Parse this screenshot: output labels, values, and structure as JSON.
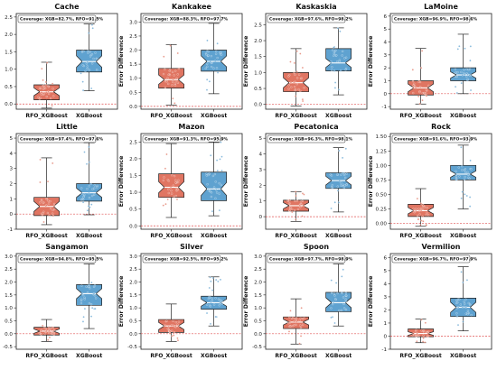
{
  "colors": {
    "rfo": "#e07562",
    "xgb": "#5fa2d0",
    "reference_line": "#e05050"
  },
  "chart_data": [
    {
      "type": "box",
      "title": "Cache",
      "coverage": "Coverage: XGB=82.7%, RFO=91.5%",
      "ylabel": "Error Difference",
      "categories": [
        "RFO_XGBoost",
        "XGBoost"
      ],
      "ylim": [
        -0.15,
        2.6
      ],
      "yticks": [
        0.0,
        0.5,
        1.0,
        1.5,
        2.0,
        2.5
      ],
      "boxes": [
        {
          "name": "RFO_XGBoost",
          "whisker_low": -0.12,
          "q1": 0.12,
          "median": 0.35,
          "q3": 0.55,
          "whisker_high": 1.2
        },
        {
          "name": "XGBoost",
          "whisker_low": 0.38,
          "q1": 0.92,
          "median": 1.22,
          "q3": 1.55,
          "whisker_high": 2.3
        }
      ]
    },
    {
      "type": "box",
      "title": "Kankakee",
      "coverage": "Coverage: XGB=88.3%, RFO=97.7%",
      "ylabel": "Error Difference",
      "categories": [
        "RFO_XGBoost",
        "XGBoost"
      ],
      "ylim": [
        -0.1,
        3.3
      ],
      "yticks": [
        0.0,
        0.5,
        1.0,
        1.5,
        2.0,
        2.5,
        3.0
      ],
      "boxes": [
        {
          "name": "RFO_XGBoost",
          "whisker_low": 0.05,
          "q1": 0.65,
          "median": 0.95,
          "q3": 1.35,
          "whisker_high": 2.2
        },
        {
          "name": "XGBoost",
          "whisker_low": 0.45,
          "q1": 1.25,
          "median": 1.6,
          "q3": 2.0,
          "whisker_high": 2.95
        }
      ]
    },
    {
      "type": "box",
      "title": "Kaskaskia",
      "coverage": "Coverage: XGB=97.6%, RFO=98.2%",
      "ylabel": "Error Difference",
      "categories": [
        "RFO_XGBoost",
        "XGBoost"
      ],
      "ylim": [
        -0.15,
        2.85
      ],
      "yticks": [
        0.0,
        0.5,
        1.0,
        1.5,
        2.0,
        2.5
      ],
      "boxes": [
        {
          "name": "RFO_XGBoost",
          "whisker_low": -0.05,
          "q1": 0.4,
          "median": 0.68,
          "q3": 1.0,
          "whisker_high": 1.75
        },
        {
          "name": "XGBoost",
          "whisker_low": 0.3,
          "q1": 1.05,
          "median": 1.3,
          "q3": 1.75,
          "whisker_high": 2.4
        }
      ]
    },
    {
      "type": "box",
      "title": "LaMoine",
      "coverage": "Coverage: XGB=96.9%, RFO=98.6%",
      "ylabel": "Error Difference",
      "categories": [
        "RFO_XGBoost",
        "XGBoost"
      ],
      "ylim": [
        -1.2,
        6.2
      ],
      "yticks": [
        -1,
        0,
        1,
        2,
        3,
        4,
        5,
        6
      ],
      "boxes": [
        {
          "name": "RFO_XGBoost",
          "whisker_low": -0.8,
          "q1": -0.1,
          "median": 0.45,
          "q3": 1.0,
          "whisker_high": 3.5
        },
        {
          "name": "XGBoost",
          "whisker_low": 0.0,
          "q1": 1.0,
          "median": 1.45,
          "q3": 2.0,
          "whisker_high": 4.6
        }
      ]
    },
    {
      "type": "box",
      "title": "Little",
      "coverage": "Coverage: XGB=97.4%, RFO=97.6%",
      "ylabel": "Error Difference",
      "categories": [
        "RFO_XGBoost",
        "XGBoost"
      ],
      "ylim": [
        -1.0,
        5.3
      ],
      "yticks": [
        -1,
        0,
        1,
        2,
        3,
        4,
        5
      ],
      "boxes": [
        {
          "name": "RFO_XGBoost",
          "whisker_low": -0.7,
          "q1": -0.1,
          "median": 0.5,
          "q3": 1.1,
          "whisker_high": 3.7
        },
        {
          "name": "XGBoost",
          "whisker_low": -0.05,
          "q1": 0.85,
          "median": 1.4,
          "q3": 2.0,
          "whisker_high": 4.7
        }
      ]
    },
    {
      "type": "box",
      "title": "Mazon",
      "coverage": "Coverage: XGB=91.3%, RFO=95.9%",
      "ylabel": "Error Difference",
      "categories": [
        "RFO_XGBoost",
        "XGBoost"
      ],
      "ylim": [
        -0.1,
        2.75
      ],
      "yticks": [
        0.0,
        0.5,
        1.0,
        1.5,
        2.0,
        2.5
      ],
      "boxes": [
        {
          "name": "RFO_XGBoost",
          "whisker_low": 0.25,
          "q1": 0.85,
          "median": 1.15,
          "q3": 1.55,
          "whisker_high": 2.45
        },
        {
          "name": "XGBoost",
          "whisker_low": 0.3,
          "q1": 0.75,
          "median": 1.1,
          "q3": 1.6,
          "whisker_high": 2.5
        }
      ]
    },
    {
      "type": "box",
      "title": "Pecatonica",
      "coverage": "Coverage: XGB=96.3%, RFO=98.1%",
      "ylabel": "Error Difference",
      "categories": [
        "RFO_XGBoost",
        "XGBoost"
      ],
      "ylim": [
        -0.8,
        5.3
      ],
      "yticks": [
        0,
        1,
        2,
        3,
        4,
        5
      ],
      "boxes": [
        {
          "name": "RFO_XGBoost",
          "whisker_low": -0.3,
          "q1": 0.35,
          "median": 0.7,
          "q3": 1.05,
          "whisker_high": 1.6
        },
        {
          "name": "XGBoost",
          "whisker_low": 0.3,
          "q1": 1.8,
          "median": 2.3,
          "q3": 2.8,
          "whisker_high": 4.4
        }
      ]
    },
    {
      "type": "box",
      "title": "Rock",
      "coverage": "Coverage: XGB=91.6%, RFO=93.9%",
      "ylabel": "Error Difference",
      "categories": [
        "RFO_XGBoost",
        "XGBoost"
      ],
      "ylim": [
        -0.1,
        1.55
      ],
      "yticks": [
        0.0,
        0.25,
        0.5,
        0.75,
        1.0,
        1.25,
        1.5
      ],
      "boxes": [
        {
          "name": "RFO_XGBoost",
          "whisker_low": -0.05,
          "q1": 0.12,
          "median": 0.22,
          "q3": 0.33,
          "whisker_high": 0.6
        },
        {
          "name": "XGBoost",
          "whisker_low": 0.25,
          "q1": 0.75,
          "median": 0.85,
          "q3": 1.0,
          "whisker_high": 1.35
        }
      ]
    },
    {
      "type": "box",
      "title": "Sangamon",
      "coverage": "Coverage: XGB=94.8%, RFO=95.5%",
      "ylabel": "Error Difference",
      "categories": [
        "RFO_XGBoost",
        "XGBoost"
      ],
      "ylim": [
        -0.6,
        3.1
      ],
      "yticks": [
        -0.5,
        0.0,
        0.5,
        1.0,
        1.5,
        2.0,
        2.5,
        3.0
      ],
      "boxes": [
        {
          "name": "RFO_XGBoost",
          "whisker_low": -0.3,
          "q1": -0.05,
          "median": 0.1,
          "q3": 0.25,
          "whisker_high": 0.55
        },
        {
          "name": "XGBoost",
          "whisker_low": 0.2,
          "q1": 1.1,
          "median": 1.55,
          "q3": 1.9,
          "whisker_high": 2.7
        }
      ]
    },
    {
      "type": "box",
      "title": "Silver",
      "coverage": "Coverage: XGB=92.5%, RFO=95.2%",
      "ylabel": "Error Difference",
      "categories": [
        "RFO_XGBoost",
        "XGBoost"
      ],
      "ylim": [
        -0.6,
        3.1
      ],
      "yticks": [
        -0.5,
        0.0,
        0.5,
        1.0,
        1.5,
        2.0,
        2.5,
        3.0
      ],
      "boxes": [
        {
          "name": "RFO_XGBoost",
          "whisker_low": -0.3,
          "q1": 0.05,
          "median": 0.3,
          "q3": 0.55,
          "whisker_high": 1.15
        },
        {
          "name": "XGBoost",
          "whisker_low": 0.3,
          "q1": 0.95,
          "median": 1.2,
          "q3": 1.45,
          "whisker_high": 2.2
        }
      ]
    },
    {
      "type": "box",
      "title": "Spoon",
      "coverage": "Coverage: XGB=97.7%, RFO=98.9%",
      "ylabel": "Error Difference",
      "categories": [
        "RFO_XGBoost",
        "XGBoost"
      ],
      "ylim": [
        -0.6,
        3.1
      ],
      "yticks": [
        -0.5,
        0.0,
        0.5,
        1.0,
        1.5,
        2.0,
        2.5,
        3.0
      ],
      "boxes": [
        {
          "name": "RFO_XGBoost",
          "whisker_low": -0.4,
          "q1": 0.2,
          "median": 0.45,
          "q3": 0.65,
          "whisker_high": 1.35
        },
        {
          "name": "XGBoost",
          "whisker_low": 0.3,
          "q1": 0.85,
          "median": 1.2,
          "q3": 1.6,
          "whisker_high": 2.7
        }
      ]
    },
    {
      "type": "box",
      "title": "Vermilion",
      "coverage": "Coverage: XGB=96.7%, RFO=97.9%",
      "ylabel": "Error Difference",
      "categories": [
        "RFO_XGBoost",
        "XGBoost"
      ],
      "ylim": [
        -1.0,
        6.3
      ],
      "yticks": [
        -1,
        0,
        1,
        2,
        3,
        4,
        5,
        6
      ],
      "boxes": [
        {
          "name": "RFO_XGBoost",
          "whisker_low": -0.5,
          "q1": -0.05,
          "median": 0.2,
          "q3": 0.55,
          "whisker_high": 1.3
        },
        {
          "name": "XGBoost",
          "whisker_low": 0.4,
          "q1": 1.5,
          "median": 2.2,
          "q3": 2.9,
          "whisker_high": 5.3
        }
      ]
    }
  ]
}
